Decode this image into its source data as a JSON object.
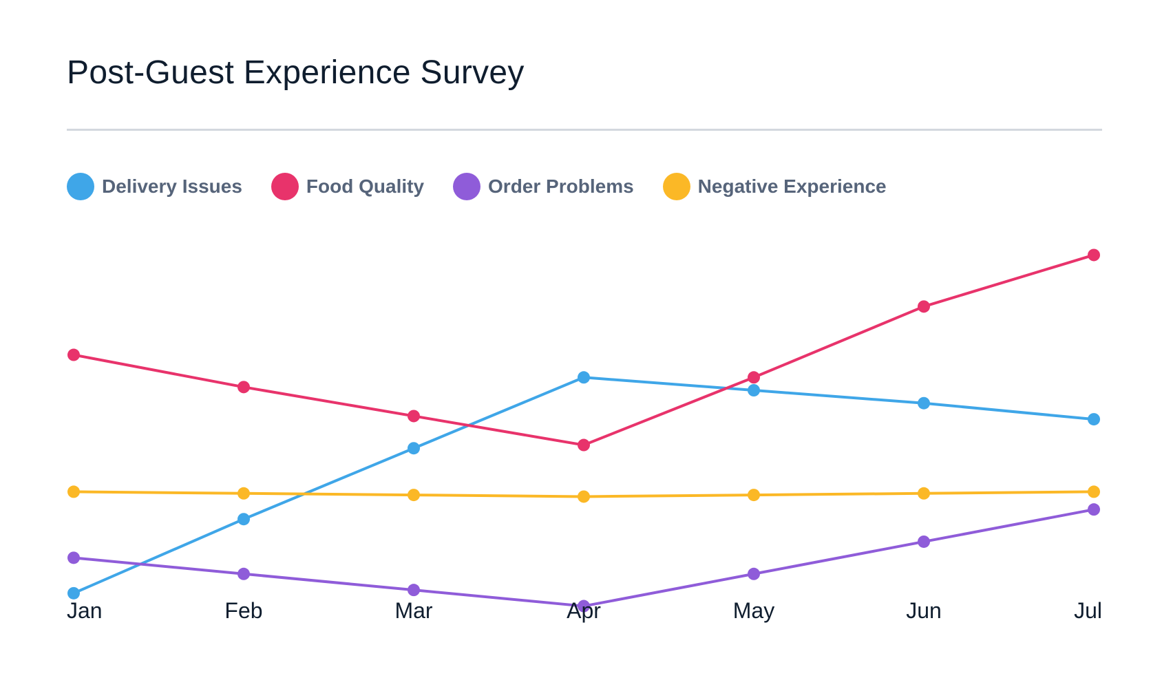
{
  "chart_data": {
    "type": "line",
    "title": "Post-Guest Experience Survey",
    "xlabel": "",
    "ylabel": "",
    "categories": [
      "Jan",
      "Feb",
      "Mar",
      "Apr",
      "May",
      "Jun",
      "Jul"
    ],
    "ylim": [
      0,
      100
    ],
    "grid": false,
    "legend_position": "top-left",
    "series": [
      {
        "name": "Delivery Issues",
        "color": "#3fa6e8",
        "values": [
          12,
          35,
          57,
          79,
          75,
          71,
          66
        ]
      },
      {
        "name": "Food Quality",
        "color": "#e8336b",
        "values": [
          86,
          76,
          67,
          58,
          79,
          101,
          117
        ]
      },
      {
        "name": "Order Problems",
        "color": "#8f5cd9",
        "values": [
          23,
          18,
          13,
          8,
          18,
          28,
          38
        ]
      },
      {
        "name": "Negative Experience",
        "color": "#fbb826",
        "values": [
          43.5,
          43,
          42.5,
          42,
          42.5,
          43,
          43.5
        ]
      }
    ]
  }
}
